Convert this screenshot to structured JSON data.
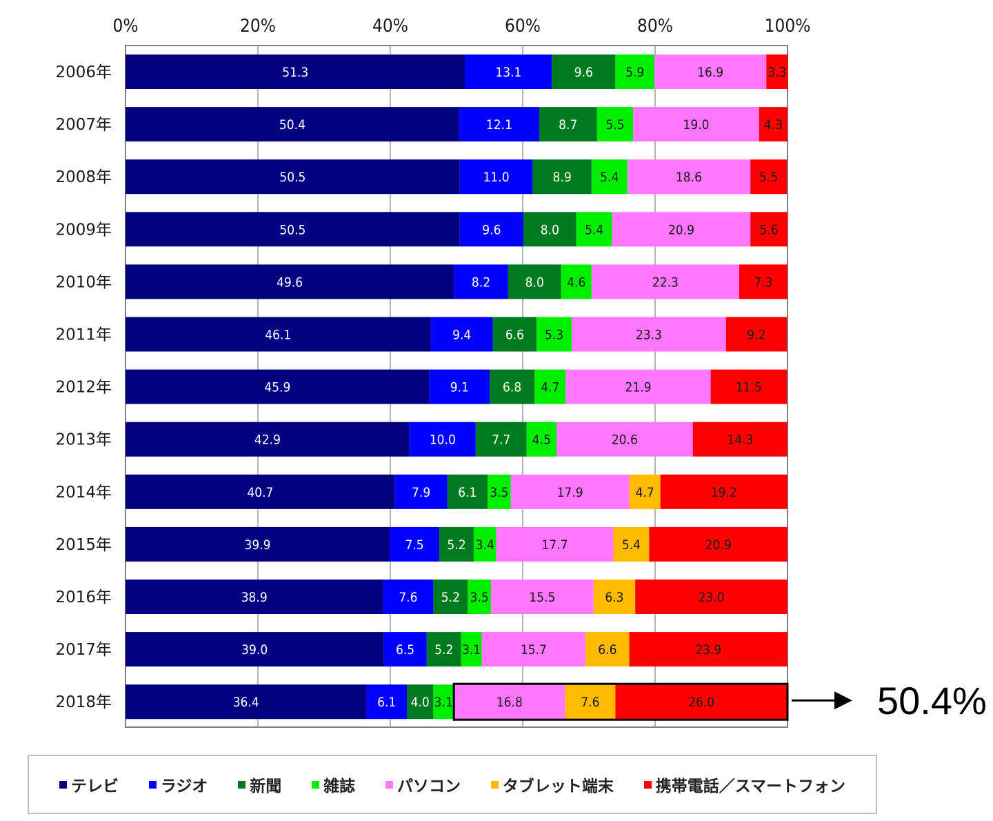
{
  "chart_data": {
    "type": "bar",
    "orientation": "horizontal",
    "stacked": true,
    "x_ticks": [
      "0%",
      "20%",
      "40%",
      "60%",
      "80%",
      "100%"
    ],
    "xlim": [
      0,
      100
    ],
    "grid": true,
    "categories": [
      "2006年",
      "2007年",
      "2008年",
      "2009年",
      "2010年",
      "2011年",
      "2012年",
      "2013年",
      "2014年",
      "2015年",
      "2016年",
      "2017年",
      "2018年"
    ],
    "series": [
      {
        "name": "テレビ",
        "color": "#000080",
        "label_color": "#ffffff",
        "values": [
          51.3,
          50.4,
          50.5,
          50.5,
          49.6,
          46.1,
          45.9,
          42.9,
          40.7,
          39.9,
          38.9,
          39.0,
          36.4
        ]
      },
      {
        "name": "ラジオ",
        "color": "#0000ff",
        "label_color": "#ffffff",
        "values": [
          13.1,
          12.1,
          11.0,
          9.6,
          8.2,
          9.4,
          9.1,
          10.0,
          7.9,
          7.5,
          7.6,
          6.5,
          6.1
        ]
      },
      {
        "name": "新聞",
        "color": "#007a1f",
        "label_color": "#ffffff",
        "values": [
          9.6,
          8.7,
          8.9,
          8.0,
          8.0,
          6.6,
          6.8,
          7.7,
          6.1,
          5.2,
          5.2,
          5.2,
          4.0
        ]
      },
      {
        "name": "雑誌",
        "color": "#00ee00",
        "label_color": "#1a1a1a",
        "values": [
          5.9,
          5.5,
          5.4,
          5.4,
          4.6,
          5.3,
          4.7,
          4.5,
          3.5,
          3.4,
          3.5,
          3.1,
          3.1
        ]
      },
      {
        "name": "パソコン",
        "color": "#ff77ff",
        "label_color": "#1a1a1a",
        "values": [
          16.9,
          19.0,
          18.6,
          20.9,
          22.3,
          23.3,
          21.9,
          20.6,
          17.9,
          17.7,
          15.5,
          15.7,
          16.8
        ]
      },
      {
        "name": "タブレット端末",
        "color": "#ffbb00",
        "label_color": "#1a1a1a",
        "values": [
          null,
          null,
          null,
          null,
          null,
          null,
          null,
          null,
          4.7,
          5.4,
          6.3,
          6.6,
          7.6
        ]
      },
      {
        "name": "携帯電話／スマートフォン",
        "color": "#ff0000",
        "label_color": "#1a1a1a",
        "values": [
          3.3,
          4.3,
          5.5,
          5.6,
          7.3,
          9.2,
          11.5,
          14.3,
          19.2,
          20.9,
          23.0,
          23.9,
          26.0
        ]
      }
    ],
    "annotation": {
      "text": "50.4%",
      "category": "2018年",
      "series_start": 4
    }
  }
}
